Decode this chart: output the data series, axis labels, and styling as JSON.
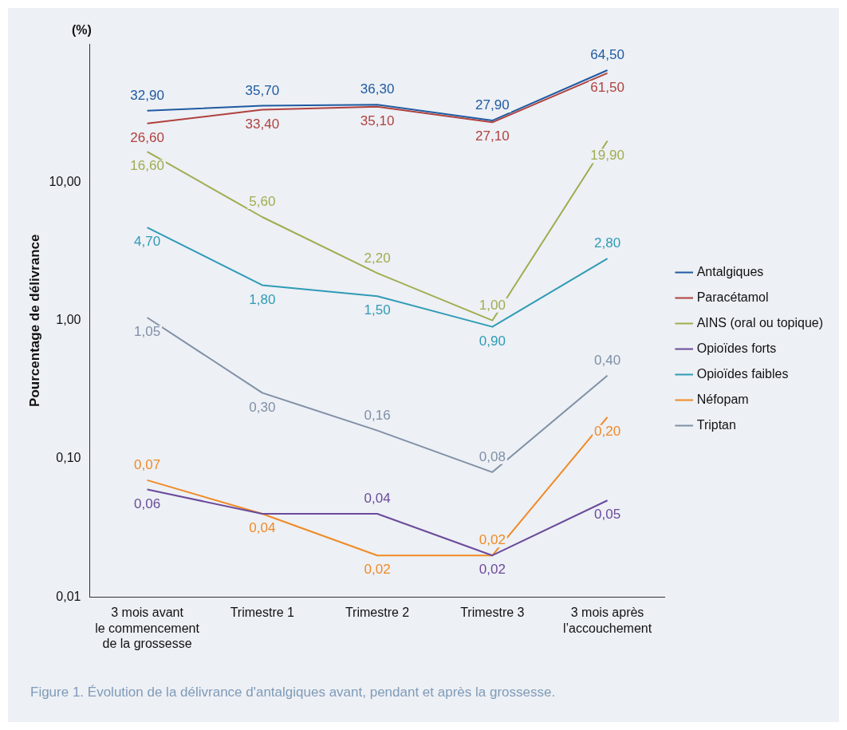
{
  "chart_data": {
    "type": "line",
    "ylabel": "Pourcentage de délivrance",
    "categories": [
      "3 mois avant\nle commencement\nde la grossesse",
      "Trimestre 1",
      "Trimestre 2",
      "Trimestre 3",
      "3 mois après\nl’accouchement"
    ],
    "series": [
      {
        "name": "Antalgiques",
        "color": "#1f5aa0",
        "values": [
          32.9,
          35.7,
          36.3,
          27.9,
          64.5
        ],
        "value_labels": [
          "32,90",
          "35,70",
          "36,30",
          "27,90",
          "64,50"
        ]
      },
      {
        "name": "Paracétamol",
        "color": "#b0413e",
        "values": [
          26.6,
          33.4,
          35.1,
          27.1,
          61.5
        ],
        "value_labels": [
          "26,60",
          "33,40",
          "35,10",
          "27,10",
          "61,50"
        ]
      },
      {
        "name": "AINS (oral ou topique)",
        "color": "#9fad4f",
        "values": [
          16.6,
          5.6,
          2.2,
          1.0,
          19.9
        ],
        "value_labels": [
          "16,60",
          "5,60",
          "2,20",
          "1,00",
          "19,90"
        ]
      },
      {
        "name": "Opioïdes forts",
        "color": "#6b4a9b",
        "values": [
          0.06,
          0.04,
          0.04,
          0.02,
          0.05
        ],
        "value_labels": [
          "0,06",
          null,
          "0,04",
          "0,02",
          "0,05"
        ]
      },
      {
        "name": "Opioïdes faibles",
        "color": "#2f9bb5",
        "values": [
          4.7,
          1.8,
          1.5,
          0.9,
          2.8
        ],
        "value_labels": [
          "4,70",
          "1,80",
          "1,50",
          "0,90",
          "2,80"
        ]
      },
      {
        "name": "Néfopam",
        "color": "#f08a24",
        "values": [
          0.07,
          0.04,
          0.02,
          0.02,
          0.2
        ],
        "value_labels": [
          "0,07",
          "0,04",
          "0,02",
          "0,02",
          "0,20"
        ]
      },
      {
        "name": "Triptan",
        "color": "#8090a6",
        "values": [
          1.05,
          0.3,
          0.16,
          0.08,
          0.4
        ],
        "value_labels": [
          "1,05",
          "0,30",
          "0,16",
          "0,08",
          "0,40"
        ]
      }
    ],
    "log": "y",
    "ylim": [
      0.01,
      100
    ],
    "yticks": [
      {
        "value": 0.01,
        "label": "0,01"
      },
      {
        "value": 0.1,
        "label": "0,10"
      },
      {
        "value": 1,
        "label": "1,00"
      },
      {
        "value": 10,
        "label": "10,00"
      }
    ],
    "grid": false,
    "legend": "right",
    "marker": "none",
    "line_style": "solid",
    "annotations": [
      "(%)",
      "Figure 1. Évolution de la délivrance d'antalgiques avant, pendant et après la grossesse."
    ]
  }
}
